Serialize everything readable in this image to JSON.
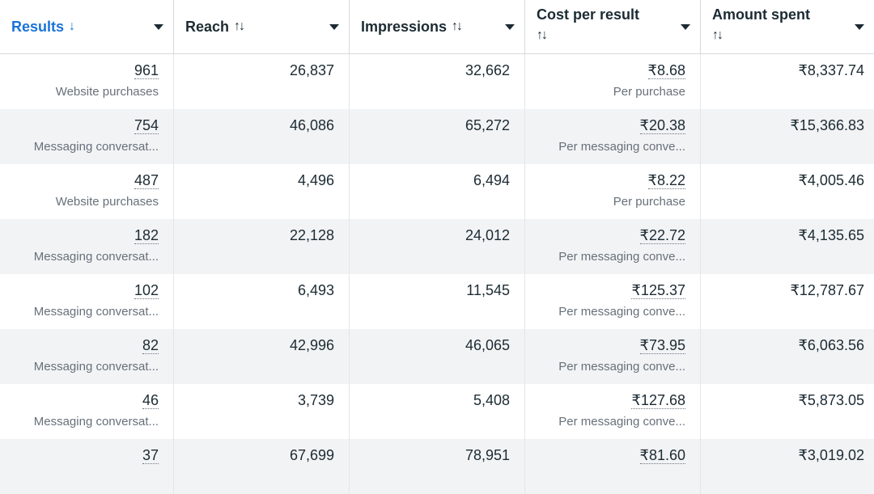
{
  "columns": [
    {
      "label": "Results",
      "sort": "↓"
    },
    {
      "label": "Reach",
      "sort": "↑↓"
    },
    {
      "label": "Impressions",
      "sort": "↑↓"
    },
    {
      "label": "Cost per result",
      "sort": "↑↓"
    },
    {
      "label": "Amount spent",
      "sort": "↑↓"
    }
  ],
  "rows": [
    {
      "results": "961",
      "results_type": "Website purchases",
      "reach": "26,837",
      "impressions": "32,662",
      "cost": "₹8.68",
      "cost_type": "Per purchase",
      "spent": "₹8,337.74"
    },
    {
      "results": "754",
      "results_type": "Messaging conversat...",
      "reach": "46,086",
      "impressions": "65,272",
      "cost": "₹20.38",
      "cost_type": "Per messaging conve...",
      "spent": "₹15,366.83"
    },
    {
      "results": "487",
      "results_type": "Website purchases",
      "reach": "4,496",
      "impressions": "6,494",
      "cost": "₹8.22",
      "cost_type": "Per purchase",
      "spent": "₹4,005.46"
    },
    {
      "results": "182",
      "results_type": "Messaging conversat...",
      "reach": "22,128",
      "impressions": "24,012",
      "cost": "₹22.72",
      "cost_type": "Per messaging conve...",
      "spent": "₹4,135.65"
    },
    {
      "results": "102",
      "results_type": "Messaging conversat...",
      "reach": "6,493",
      "impressions": "11,545",
      "cost": "₹125.37",
      "cost_type": "Per messaging conve...",
      "spent": "₹12,787.67"
    },
    {
      "results": "82",
      "results_type": "Messaging conversat...",
      "reach": "42,996",
      "impressions": "46,065",
      "cost": "₹73.95",
      "cost_type": "Per messaging conve...",
      "spent": "₹6,063.56"
    },
    {
      "results": "46",
      "results_type": "Messaging conversat...",
      "reach": "3,739",
      "impressions": "5,408",
      "cost": "₹127.68",
      "cost_type": "Per messaging conve...",
      "spent": "₹5,873.05"
    },
    {
      "results": "37",
      "results_type": "",
      "reach": "67,699",
      "impressions": "78,951",
      "cost": "₹81.60",
      "cost_type": "",
      "spent": "₹3,019.02"
    }
  ],
  "colors": {
    "accent": "#1a73d9",
    "alt_row": "#f2f3f5",
    "border": "#d6d9dd"
  },
  "icons": {
    "sort_desc": "arrow-down-icon",
    "sort_both": "sort-arrows-icon",
    "menu": "caret-down-icon"
  }
}
